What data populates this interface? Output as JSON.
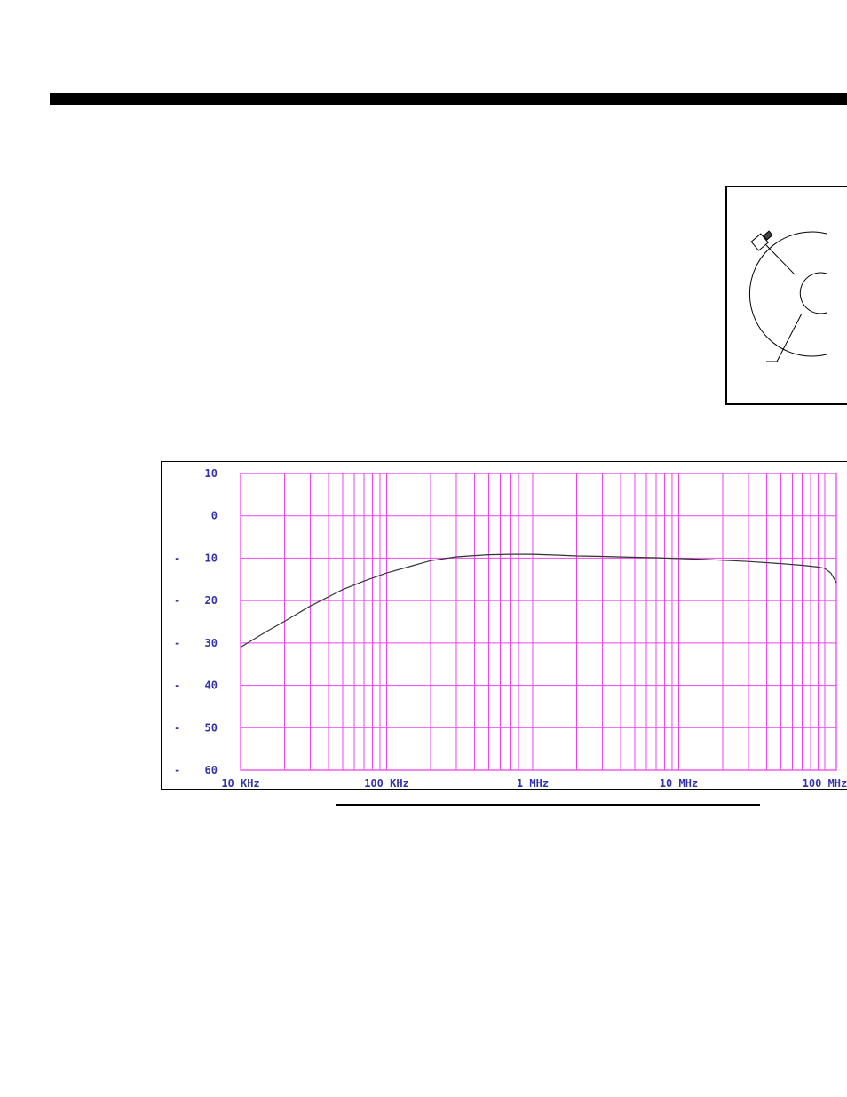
{
  "chart_data": {
    "type": "line",
    "title": "",
    "xlabel": "",
    "ylabel": "",
    "x_scale": "log",
    "xlim": [
      10000,
      120000000
    ],
    "ylim": [
      -60,
      10
    ],
    "grid": true,
    "x_tick_labels": [
      "10 KHz",
      "100 KHz",
      "1 MHz",
      "10 MHz",
      "100 MHz"
    ],
    "x_tick_values": [
      10000,
      100000,
      1000000,
      10000000,
      100000000
    ],
    "y_ticks": [
      {
        "value": 10,
        "label": "10",
        "sign": ""
      },
      {
        "value": 0,
        "label": "0",
        "sign": ""
      },
      {
        "value": -10,
        "label": "10",
        "sign": "-"
      },
      {
        "value": -20,
        "label": "20",
        "sign": "-"
      },
      {
        "value": -30,
        "label": "30",
        "sign": "-"
      },
      {
        "value": -40,
        "label": "40",
        "sign": "-"
      },
      {
        "value": -50,
        "label": "50",
        "sign": "-"
      },
      {
        "value": -60,
        "label": "60",
        "sign": "-"
      }
    ],
    "series": [
      {
        "x": [
          10000,
          15000,
          20000,
          30000,
          50000,
          70000,
          100000,
          150000,
          200000,
          300000,
          400000,
          500000,
          700000,
          1000000,
          1500000,
          2000000,
          3000000,
          5000000,
          7000000,
          10000000,
          15000000,
          20000000,
          30000000,
          50000000,
          70000000,
          90000000,
          100000000,
          110000000,
          120000000
        ],
        "y": [
          -31,
          -27.3,
          -24.9,
          -21.3,
          -17.4,
          -15.4,
          -13.5,
          -11.8,
          -10.6,
          -9.7,
          -9.4,
          -9.2,
          -9.1,
          -9.1,
          -9.3,
          -9.5,
          -9.6,
          -9.8,
          -9.9,
          -10.1,
          -10.3,
          -10.5,
          -10.8,
          -11.3,
          -11.7,
          -12.1,
          -12.4,
          -13.5,
          -15.8
        ]
      }
    ],
    "colors": {
      "grid": "#ee44ee",
      "line": "#333333",
      "ticks": "#3333aa"
    }
  }
}
